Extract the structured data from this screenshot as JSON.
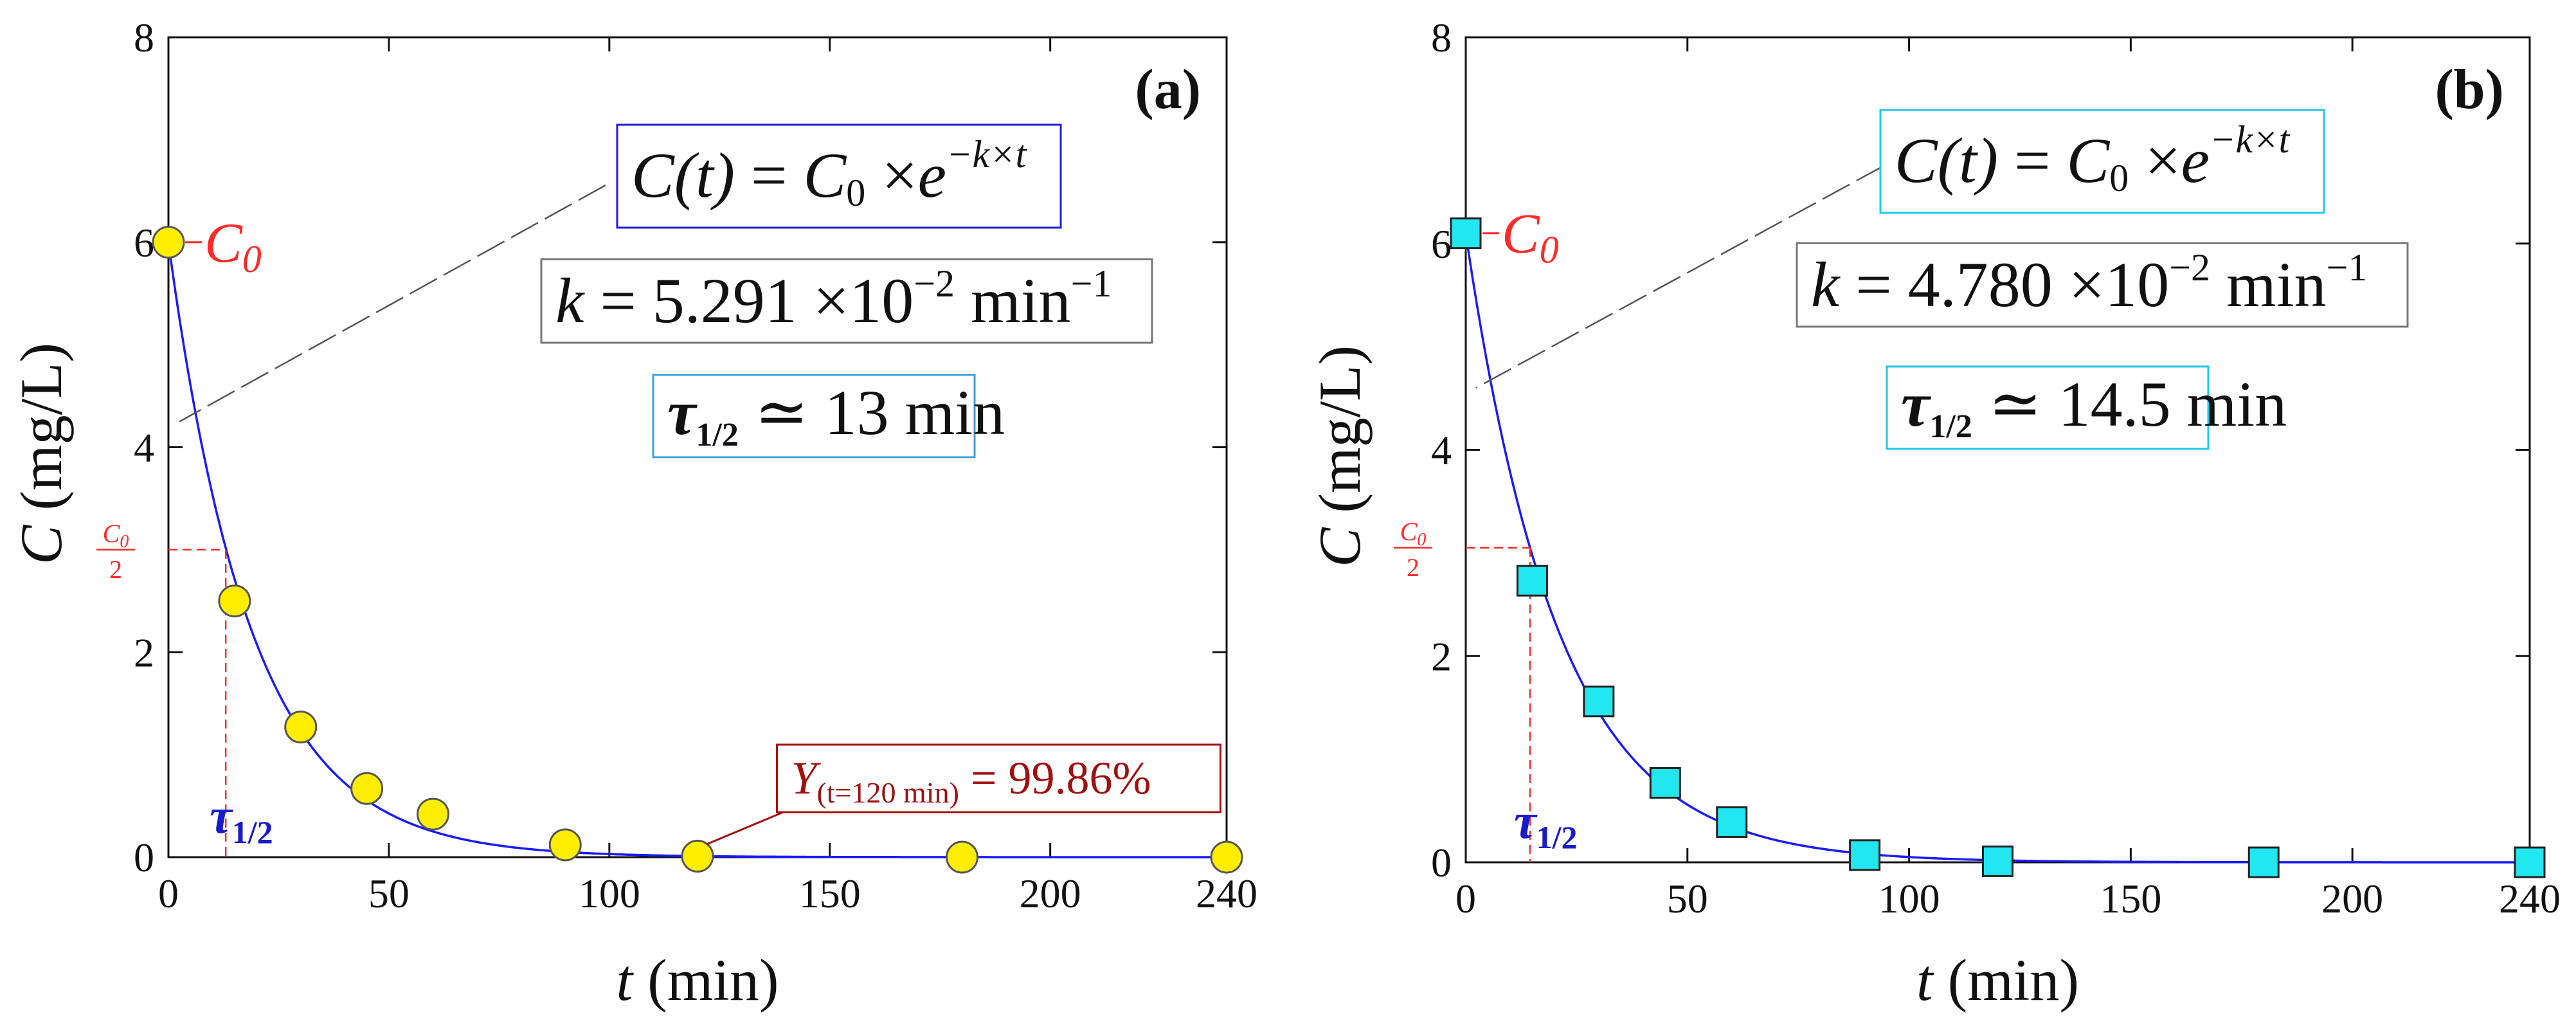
{
  "chart_data": [
    {
      "type": "scatter",
      "panel": "(a)",
      "marker": "circle",
      "marker_color": "#ffee00",
      "box_color": "#2020cc",
      "xlabel_italic": "t",
      "xlabel_rest": "(min)",
      "ylabel_italic": "C",
      "ylabel_rest": "(mg/L)",
      "xlim": [
        0,
        240
      ],
      "ylim": [
        0,
        8
      ],
      "xticks": [
        "0",
        "50",
        "100",
        "150",
        "200",
        "240"
      ],
      "xtick_values": [
        0,
        50,
        100,
        150,
        200,
        240
      ],
      "yticks": [
        "0",
        "2",
        "4",
        "6",
        "8"
      ],
      "ytick_values": [
        0,
        2,
        4,
        6,
        8
      ],
      "series": [
        {
          "name": "measured",
          "x": [
            0,
            15,
            30,
            45,
            60,
            90,
            120,
            180,
            240
          ],
          "y": [
            6.0,
            2.5,
            1.27,
            0.67,
            0.42,
            0.12,
            0.01,
            0.0,
            0.0
          ]
        },
        {
          "name": "fit",
          "C0": 6.0,
          "k": 0.05291
        }
      ],
      "half_life": 13,
      "equation": {
        "lhs": "C(t)",
        "c0": "C",
        "c0_sub": "0",
        "times": "×",
        "e": "e",
        "exponent": "−k×t"
      },
      "k_text": {
        "k": "k",
        "eq": "=",
        "mantissa": "5.291",
        "times": "×10",
        "exp": "−2",
        "unit": "min",
        "unit_exp": "−1"
      },
      "tau_text": {
        "tau": "τ",
        "sub": "1/2",
        "approx": "≃",
        "value": "13 min"
      },
      "c0_label": "C",
      "c0_label_sub": "0",
      "half_label_num": "C",
      "half_label_num_sub": "0",
      "half_label_den": "2",
      "tau_axis_label": "τ",
      "tau_axis_sub": "1/2",
      "yield_text": {
        "Y": "Y",
        "sub": "(t=120 min)",
        "value": "= 99.86%"
      }
    },
    {
      "type": "scatter",
      "panel": "(b)",
      "marker": "square",
      "marker_color": "#22e6f0",
      "box_color": "#22c8e6",
      "xlabel_italic": "t",
      "xlabel_rest": "(min)",
      "ylabel_italic": "C",
      "ylabel_rest": "(mg/L)",
      "xlim": [
        0,
        240
      ],
      "ylim": [
        0,
        8
      ],
      "xticks": [
        "0",
        "50",
        "100",
        "150",
        "200",
        "240"
      ],
      "xtick_values": [
        0,
        50,
        100,
        150,
        200,
        240
      ],
      "yticks": [
        "0",
        "2",
        "4",
        "6",
        "8"
      ],
      "ytick_values": [
        0,
        2,
        4,
        6,
        8
      ],
      "series": [
        {
          "name": "measured",
          "x": [
            0,
            15,
            30,
            45,
            60,
            90,
            120,
            180,
            240
          ],
          "y": [
            6.1,
            2.73,
            1.56,
            0.77,
            0.39,
            0.07,
            0.01,
            0.0,
            0.0
          ]
        },
        {
          "name": "fit",
          "C0": 6.1,
          "k": 0.0478
        }
      ],
      "half_life": 14.5,
      "equation": {
        "lhs": "C(t)",
        "c0": "C",
        "c0_sub": "0",
        "times": "×",
        "e": "e",
        "exponent": "−k×t"
      },
      "k_text": {
        "k": "k",
        "eq": "=",
        "mantissa": "4.780",
        "times": "×10",
        "exp": "−2",
        "unit": "min",
        "unit_exp": "−1"
      },
      "tau_text": {
        "tau": "τ",
        "sub": "1/2",
        "approx": "≃",
        "value": "14.5 min"
      },
      "c0_label": "C",
      "c0_label_sub": "0",
      "half_label_num": "C",
      "half_label_num_sub": "0",
      "half_label_den": "2",
      "tau_axis_label": "τ",
      "tau_axis_sub": "1/2"
    }
  ]
}
